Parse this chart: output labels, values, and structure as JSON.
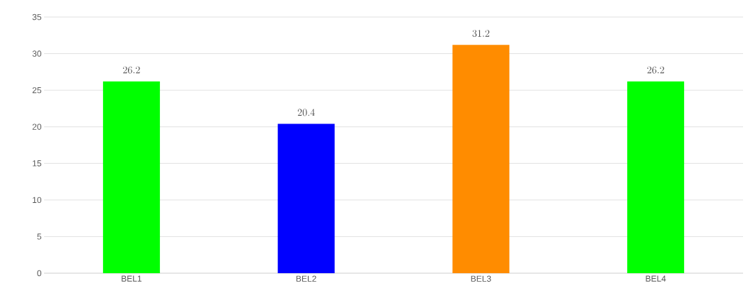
{
  "chart_data": {
    "type": "bar",
    "categories": [
      "BEL1",
      "BEL2",
      "BEL3",
      "BEL4"
    ],
    "values": [
      26.2,
      20.4,
      31.2,
      26.2
    ],
    "colors": [
      "#00ff00",
      "#0000ff",
      "#ff8c00",
      "#00ff00"
    ],
    "ylim": [
      0,
      35
    ],
    "yticks": [
      0,
      5,
      10,
      15,
      20,
      25,
      30,
      35
    ],
    "grid": "y",
    "data_labels": true
  }
}
